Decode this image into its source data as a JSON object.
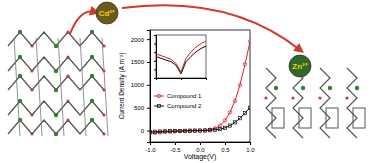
{
  "chart_data": [
    {
      "type": "line",
      "x_label": "Voltage(V)",
      "y_label": "Current Density (A m⁻²)",
      "x": [
        -1.0,
        -0.9,
        -0.8,
        -0.7,
        -0.6,
        -0.5,
        -0.4,
        -0.3,
        -0.2,
        -0.1,
        0.0,
        0.1,
        0.2,
        0.3,
        0.4,
        0.5,
        0.6,
        0.7,
        0.8,
        0.9,
        1.0
      ],
      "series": [
        {
          "name": "Compound 1",
          "color": "#e0202a",
          "marker": "circle",
          "values": [
            -60,
            -50,
            -40,
            -30,
            -25,
            -20,
            -15,
            -10,
            -5,
            -2,
            0,
            5,
            20,
            50,
            110,
            220,
            400,
            650,
            1000,
            1450,
            1950
          ]
        },
        {
          "name": "Compound 2",
          "color": "#111111",
          "marker": "square",
          "values": [
            -30,
            -25,
            -20,
            -16,
            -12,
            -10,
            -8,
            -5,
            -3,
            -1,
            0,
            2,
            8,
            18,
            32,
            60,
            110,
            180,
            270,
            380,
            500
          ]
        }
      ],
      "xlim": [
        -1.0,
        1.0
      ],
      "xticks": [
        {
          "value": -1.0,
          "label": "-1.0"
        },
        {
          "value": -0.5,
          "label": "-0.5"
        },
        {
          "value": 0,
          "label": "0.0"
        },
        {
          "value": 0.5,
          "label": "0.5"
        },
        {
          "value": 1.0,
          "label": "1.0"
        }
      ],
      "ylim": [
        -250,
        2200
      ],
      "yticks": [
        0,
        500,
        1000,
        1500,
        2000
      ],
      "legend": "left"
    },
    {
      "type": "line",
      "log": "y",
      "tick_labels": false,
      "x": [
        -1.0,
        -0.8,
        -0.6,
        -0.4,
        -0.2,
        0.0,
        0.2,
        0.4,
        0.6,
        0.8,
        1.0
      ],
      "series": [
        {
          "name": null,
          "color": "#e0202a",
          "values": [
            60,
            40,
            25,
            15,
            5,
            0.5,
            20,
            110,
            400,
            1000,
            1950
          ]
        },
        {
          "name": null,
          "color": "#111111",
          "values": [
            30,
            20,
            12,
            8,
            3,
            0.3,
            8,
            32,
            110,
            270,
            500
          ]
        }
      ],
      "xlim": [
        -1.0,
        1.0
      ],
      "xticks": [
        -1,
        0,
        1
      ],
      "ylim": [
        0.1,
        10000
      ],
      "yticks": [
        0.1,
        1,
        10,
        100,
        1000,
        10000
      ]
    }
  ],
  "diagram": {
    "ions": [
      "Cd²⁺",
      "Zn²⁺"
    ]
  }
}
